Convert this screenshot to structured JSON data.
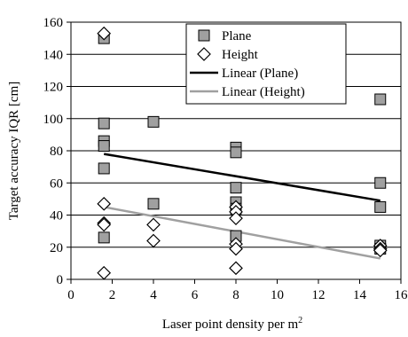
{
  "chart_data": {
    "type": "scatter",
    "xlabel": "Laser point density per m",
    "xlabel_sup": "2",
    "ylabel": "Target accuracy IQR [cm]",
    "xlim": [
      0,
      16
    ],
    "ylim": [
      0,
      160
    ],
    "xticks": [
      0,
      2,
      4,
      6,
      8,
      10,
      12,
      14,
      16
    ],
    "yticks": [
      0,
      20,
      40,
      60,
      80,
      100,
      120,
      140,
      160
    ],
    "grid": "horizontal",
    "legend_position": "top-right",
    "series": [
      {
        "name": "Plane",
        "marker": "square",
        "color": "#a0a0a0",
        "points": [
          [
            1.6,
            150
          ],
          [
            1.6,
            97
          ],
          [
            1.6,
            86
          ],
          [
            1.6,
            83
          ],
          [
            1.6,
            69
          ],
          [
            1.6,
            26
          ],
          [
            4,
            98
          ],
          [
            4,
            47
          ],
          [
            8,
            82
          ],
          [
            8,
            79
          ],
          [
            8,
            57
          ],
          [
            8,
            48
          ],
          [
            8,
            44
          ],
          [
            8,
            27
          ],
          [
            15,
            112
          ],
          [
            15,
            60
          ],
          [
            15,
            45
          ],
          [
            15,
            21
          ],
          [
            15,
            19
          ]
        ]
      },
      {
        "name": "Height",
        "marker": "diamond",
        "color": "#ffffff",
        "points": [
          [
            1.6,
            153
          ],
          [
            1.6,
            47
          ],
          [
            1.6,
            35
          ],
          [
            1.6,
            34
          ],
          [
            1.6,
            4
          ],
          [
            4,
            34
          ],
          [
            4,
            24
          ],
          [
            8,
            45
          ],
          [
            8,
            42
          ],
          [
            8,
            38
          ],
          [
            8,
            22
          ],
          [
            8,
            19
          ],
          [
            8,
            7
          ],
          [
            15,
            21
          ],
          [
            15,
            19
          ],
          [
            15,
            18
          ]
        ]
      },
      {
        "name": "Linear (Plane)",
        "type": "line",
        "color": "#000000",
        "points": [
          [
            1.6,
            78
          ],
          [
            15,
            49
          ]
        ]
      },
      {
        "name": "Linear (Height)",
        "type": "line",
        "color": "#a0a0a0",
        "points": [
          [
            1.6,
            45
          ],
          [
            15,
            13
          ]
        ]
      }
    ]
  }
}
